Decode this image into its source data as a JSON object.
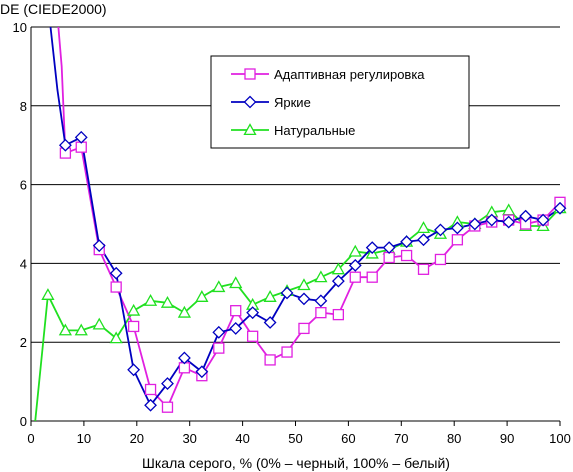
{
  "chart_data": {
    "type": "line",
    "ylabel": "DE (CIEDE2000)",
    "xlabel": "Шкала серого, % (0% – черный, 100% – белый)",
    "xlim": [
      0,
      100
    ],
    "ylim": [
      0,
      10
    ],
    "x_ticks": [
      0,
      10,
      20,
      30,
      40,
      50,
      60,
      70,
      80,
      90,
      100
    ],
    "y_ticks": [
      0,
      2,
      4,
      6,
      8,
      10
    ],
    "grid": "horizontal",
    "legend_position": "top-right",
    "series": [
      {
        "name": "Адаптивная регулировка",
        "color": "#e020e0",
        "marker": "square",
        "x": [
          6.5,
          9.5,
          12.9,
          16.1,
          19.4,
          22.6,
          25.8,
          29,
          32.3,
          35.5,
          38.7,
          41.9,
          45.2,
          48.4,
          51.6,
          54.8,
          58.1,
          61.3,
          64.5,
          67.7,
          71,
          74.2,
          77.4,
          80.6,
          83.9,
          87.1,
          90.3,
          93.5,
          96.8,
          100
        ],
        "y": [
          6.8,
          6.95,
          4.35,
          3.4,
          2.4,
          0.8,
          0.35,
          1.35,
          1.15,
          1.85,
          2.8,
          2.15,
          1.55,
          1.75,
          2.35,
          2.75,
          2.7,
          3.65,
          3.65,
          4.15,
          4.2,
          3.85,
          4.1,
          4.6,
          4.95,
          5.05,
          5.1,
          5,
          5.1,
          5.55
        ],
        "lead_in": {
          "x": [
            4.8,
            5.8
          ],
          "y": [
            10.6,
            9.0
          ]
        }
      },
      {
        "name": "Яркие",
        "color": "#0000c0",
        "marker": "diamond",
        "x": [
          6.5,
          9.5,
          12.9,
          16.1,
          19.4,
          22.6,
          25.8,
          29,
          32.3,
          35.5,
          38.7,
          41.9,
          45.2,
          48.4,
          51.6,
          54.8,
          58.1,
          61.3,
          64.5,
          67.7,
          71,
          74.2,
          77.4,
          80.6,
          83.9,
          87.1,
          90.3,
          93.5,
          96.8,
          100
        ],
        "y": [
          7,
          7.2,
          4.45,
          3.75,
          1.3,
          0.4,
          0.95,
          1.6,
          1.25,
          2.25,
          2.35,
          2.75,
          2.5,
          3.25,
          3.1,
          3.05,
          3.55,
          3.95,
          4.4,
          4.4,
          4.55,
          4.6,
          4.85,
          4.9,
          5,
          5.1,
          5.05,
          5.2,
          5.1,
          5.4
        ],
        "lead_in": {
          "x": [
            3.2,
            5.0
          ],
          "y": [
            10.6,
            8.4
          ]
        }
      },
      {
        "name": "Натуральные",
        "color": "#20e020",
        "marker": "triangle",
        "x": [
          0.8,
          3.2,
          6.5,
          9.5,
          12.9,
          16.1,
          19.4,
          22.6,
          25.8,
          29,
          32.3,
          35.5,
          38.7,
          41.9,
          45.2,
          48.4,
          51.6,
          54.8,
          58.1,
          61.3,
          64.5,
          67.7,
          71,
          74.2,
          77.4,
          80.6,
          83.9,
          87.1,
          90.3,
          93.5,
          96.8,
          100
        ],
        "y": [
          0,
          3.2,
          2.3,
          2.3,
          2.45,
          2.1,
          2.8,
          3.05,
          3.0,
          2.75,
          3.15,
          3.4,
          3.5,
          2.95,
          3.15,
          3.3,
          3.45,
          3.65,
          3.85,
          4.3,
          4.25,
          4.35,
          4.55,
          4.9,
          4.75,
          5.05,
          5.0,
          5.3,
          5.35,
          4.95,
          4.95,
          5.4
        ],
        "marker_from_index": 1
      }
    ]
  }
}
